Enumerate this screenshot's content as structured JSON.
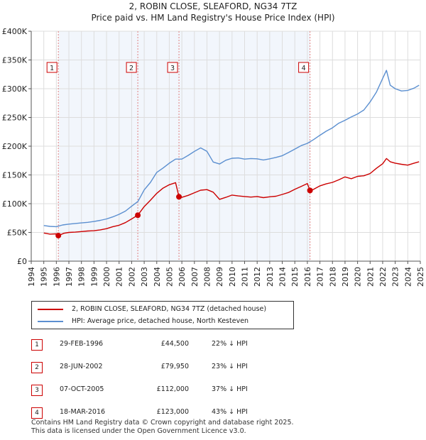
{
  "title": "2, ROBIN CLOSE, SLEAFORD, NG34 7TZ",
  "subtitle": "Price paid vs. HM Land Registry's House Price Index (HPI)",
  "chart_data": {
    "type": "line",
    "title": "2, ROBIN CLOSE, SLEAFORD, NG34 7TZ",
    "subtitle": "Price paid vs. HM Land Registry's House Price Index (HPI)",
    "xlim": [
      1994,
      2025
    ],
    "ylim": [
      0,
      400000
    ],
    "x_ticks": [
      "1994",
      "1995",
      "1996",
      "1997",
      "1998",
      "1999",
      "2000",
      "2001",
      "2002",
      "2003",
      "2004",
      "2005",
      "2006",
      "2007",
      "2008",
      "2009",
      "2010",
      "2011",
      "2012",
      "2013",
      "2014",
      "2015",
      "2016",
      "2017",
      "2018",
      "2019",
      "2020",
      "2021",
      "2022",
      "2023",
      "2024",
      "2025"
    ],
    "y_ticks": [
      {
        "value": 0,
        "label": "£0"
      },
      {
        "value": 50000,
        "label": "£50K"
      },
      {
        "value": 100000,
        "label": "£100K"
      },
      {
        "value": 150000,
        "label": "£150K"
      },
      {
        "value": 200000,
        "label": "£200K"
      },
      {
        "value": 250000,
        "label": "£250K"
      },
      {
        "value": 300000,
        "label": "£300K"
      },
      {
        "value": 350000,
        "label": "£350K"
      },
      {
        "value": 400000,
        "label": "£400K"
      }
    ],
    "grid": true,
    "series": [
      {
        "name": "2, ROBIN CLOSE, SLEAFORD, NG34 7TZ (detached house)",
        "color": "#cc0000",
        "x": [
          1995.0,
          1995.5,
          1996.0,
          1996.16,
          1996.6,
          1997.0,
          1997.5,
          1998.0,
          1998.5,
          1999.0,
          1999.5,
          2000.0,
          2000.5,
          2001.0,
          2001.5,
          2002.0,
          2002.49,
          2003.0,
          2003.5,
          2004.0,
          2004.5,
          2005.0,
          2005.5,
          2005.77,
          2006.0,
          2006.5,
          2007.0,
          2007.5,
          2008.0,
          2008.5,
          2009.0,
          2009.5,
          2010.0,
          2010.5,
          2011.0,
          2011.5,
          2012.0,
          2012.5,
          2013.0,
          2013.5,
          2014.0,
          2014.5,
          2015.0,
          2015.5,
          2016.0,
          2016.21,
          2016.5,
          2017.0,
          2017.5,
          2018.0,
          2018.5,
          2019.0,
          2019.5,
          2020.0,
          2020.5,
          2021.0,
          2021.5,
          2022.0,
          2022.3,
          2022.6,
          2023.0,
          2023.5,
          2024.0,
          2024.5,
          2024.9
        ],
        "values": [
          49000,
          47000,
          47500,
          44500,
          48500,
          50000,
          50500,
          51500,
          52500,
          53000,
          54500,
          56500,
          60000,
          62500,
          67000,
          73500,
          79950,
          95000,
          106000,
          118000,
          127000,
          133000,
          136500,
          112000,
          111000,
          114500,
          119000,
          123500,
          124500,
          120000,
          107500,
          111000,
          115000,
          113500,
          112500,
          111500,
          112500,
          110500,
          112000,
          113000,
          116000,
          119500,
          125000,
          130000,
          135000,
          123000,
          125000,
          131000,
          134500,
          137000,
          141500,
          146500,
          143500,
          147500,
          148500,
          152500,
          161500,
          169500,
          178500,
          173000,
          170500,
          168500,
          167000,
          170500,
          173000
        ]
      },
      {
        "name": "HPI: Average price, detached house, North Kesteven",
        "color": "#5b8fd0",
        "x": [
          1995.0,
          1995.5,
          1996.0,
          1996.5,
          1997.0,
          1997.5,
          1998.0,
          1998.5,
          1999.0,
          1999.5,
          2000.0,
          2000.5,
          2001.0,
          2001.5,
          2002.0,
          2002.5,
          2003.0,
          2003.5,
          2004.0,
          2004.5,
          2005.0,
          2005.5,
          2006.0,
          2006.5,
          2007.0,
          2007.5,
          2008.0,
          2008.5,
          2009.0,
          2009.5,
          2010.0,
          2010.5,
          2011.0,
          2011.5,
          2012.0,
          2012.5,
          2013.0,
          2013.5,
          2014.0,
          2014.5,
          2015.0,
          2015.5,
          2016.0,
          2016.5,
          2017.0,
          2017.5,
          2018.0,
          2018.5,
          2019.0,
          2019.5,
          2020.0,
          2020.5,
          2021.0,
          2021.5,
          2022.0,
          2022.3,
          2022.6,
          2023.0,
          2023.5,
          2024.0,
          2024.5,
          2024.9
        ],
        "values": [
          62000,
          60500,
          60000,
          63000,
          64500,
          65500,
          66500,
          67500,
          69000,
          71000,
          73500,
          77000,
          81500,
          87000,
          95500,
          104000,
          124000,
          137000,
          154500,
          162000,
          170500,
          177500,
          177500,
          184000,
          191000,
          197000,
          191000,
          172500,
          169000,
          175500,
          179000,
          179500,
          177500,
          178500,
          178000,
          176000,
          178000,
          180500,
          183500,
          189000,
          195000,
          201000,
          205000,
          211500,
          219000,
          226000,
          232000,
          240000,
          245000,
          251000,
          256000,
          263000,
          277000,
          294000,
          318000,
          332000,
          306000,
          300000,
          296000,
          297000,
          301000,
          306000
        ]
      }
    ],
    "sales": [
      {
        "num": "1",
        "x": 1996.16,
        "price_value": 44500
      },
      {
        "num": "2",
        "x": 2002.49,
        "price_value": 79950
      },
      {
        "num": "3",
        "x": 2005.77,
        "price_value": 112000
      },
      {
        "num": "4",
        "x": 2016.21,
        "price_value": 123000
      }
    ]
  },
  "legend": {
    "property_label": "2, ROBIN CLOSE, SLEAFORD, NG34 7TZ (detached house)",
    "hpi_label": "HPI: Average price, detached house, North Kesteven",
    "property_color": "#cc0000",
    "hpi_color": "#5b8fd0"
  },
  "sales_table": [
    {
      "num": "1",
      "date": "29-FEB-1996",
      "price": "£44,500",
      "hpi": "22% ↓ HPI"
    },
    {
      "num": "2",
      "date": "28-JUN-2002",
      "price": "£79,950",
      "hpi": "23% ↓ HPI"
    },
    {
      "num": "3",
      "date": "07-OCT-2005",
      "price": "£112,000",
      "hpi": "37% ↓ HPI"
    },
    {
      "num": "4",
      "date": "18-MAR-2016",
      "price": "£123,000",
      "hpi": "43% ↓ HPI"
    }
  ],
  "footer": {
    "line1": "Contains HM Land Registry data © Crown copyright and database right 2025.",
    "line2": "This data is licensed under the Open Government Licence v3.0."
  }
}
